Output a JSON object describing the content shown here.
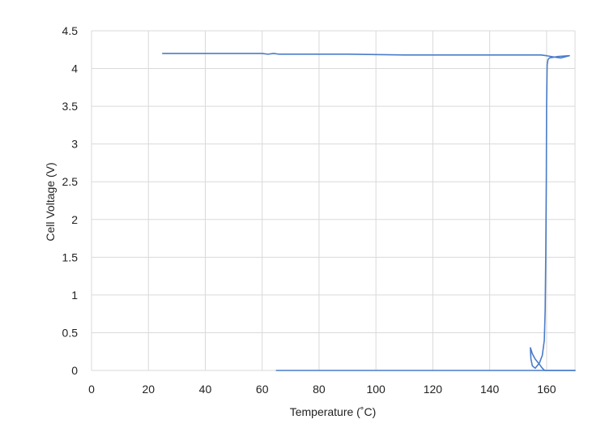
{
  "chart_data": {
    "type": "line",
    "title": "",
    "xlabel": "Temperature (˚C)",
    "ylabel": "Cell Voltage (V)",
    "xlim": [
      0,
      170
    ],
    "ylim": [
      0,
      4.5
    ],
    "x_ticks": [
      "0",
      "20",
      "40",
      "60",
      "80",
      "100",
      "120",
      "140",
      "160"
    ],
    "y_ticks": [
      "0",
      "0.5",
      "1",
      "1.5",
      "2",
      "2.5",
      "3",
      "3.5",
      "4",
      "4.5"
    ],
    "grid": true,
    "legend": "none",
    "colors": {
      "series": "#4a7cc9",
      "grid": "#d9d9d9"
    },
    "series": [
      {
        "x": [
          25,
          40,
          60,
          62,
          64,
          66,
          90,
          110,
          130,
          150,
          155,
          158,
          160,
          163,
          165,
          168,
          164,
          161,
          160.5,
          160.2,
          160,
          159.9,
          159.7,
          159.5,
          159.2,
          158.5,
          157.5,
          156,
          155,
          154.5,
          154.3,
          154.5,
          155,
          156,
          157.5,
          158.5,
          159,
          159.4,
          159.7,
          160,
          160.5,
          162,
          165,
          170
        ],
        "y": [
          4.2,
          4.2,
          4.2,
          4.19,
          4.2,
          4.19,
          4.19,
          4.18,
          4.18,
          4.18,
          4.18,
          4.18,
          4.17,
          4.15,
          4.14,
          4.17,
          4.16,
          4.14,
          4.12,
          4.05,
          3.5,
          2.5,
          1.5,
          0.8,
          0.4,
          0.2,
          0.1,
          0.03,
          0.06,
          0.15,
          0.3,
          0.28,
          0.22,
          0.15,
          0.08,
          0.03,
          0.01,
          0.0,
          0.0,
          0.0,
          0.0,
          0.0,
          0.0,
          0.0
        ]
      },
      {
        "x": [
          65,
          100,
          130,
          150,
          158,
          165,
          170
        ],
        "y": [
          0.0,
          0.0,
          0.0,
          0.0,
          0.0,
          0.0,
          0.0
        ]
      }
    ]
  }
}
